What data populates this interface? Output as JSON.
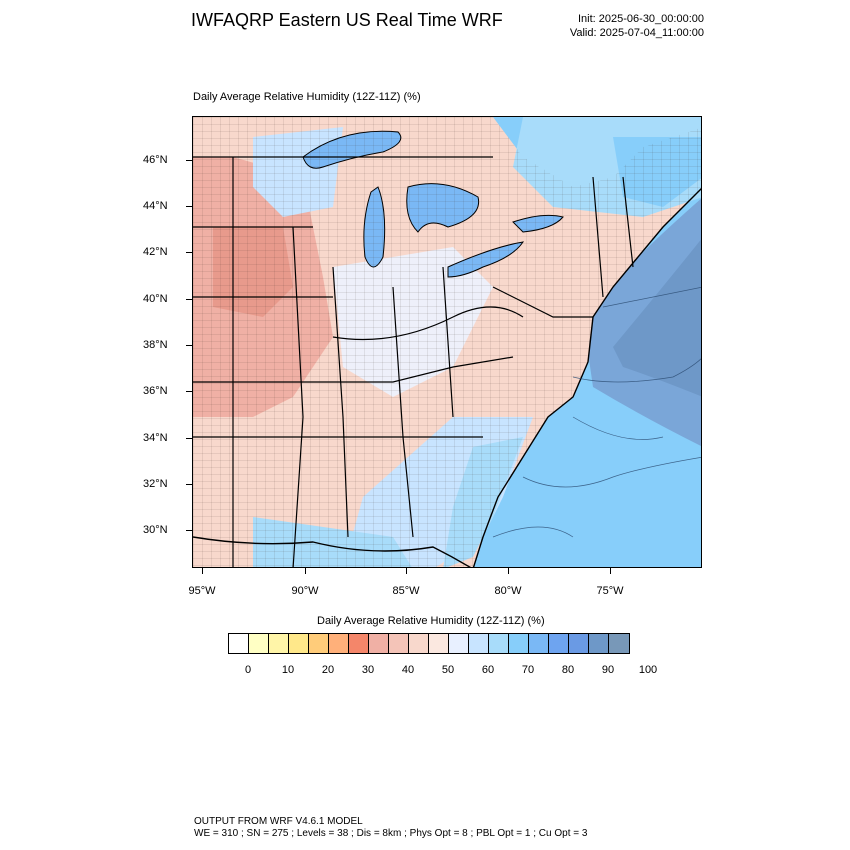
{
  "header": {
    "title": "IWFAQRP Eastern US Real Time WRF",
    "init": "Init: 2025-06-30_00:00:00",
    "valid": "Valid: 2025-07-04_11:00:00"
  },
  "map": {
    "field_label": "Daily Average Relative Humidity (12Z-11Z)   (%)",
    "lat_labels": [
      "46°N",
      "44°N",
      "42°N",
      "40°N",
      "38°N",
      "36°N",
      "34°N",
      "32°N",
      "30°N"
    ],
    "lon_labels": [
      "95°W",
      "90°W",
      "85°W",
      "80°W",
      "75°W"
    ]
  },
  "colorbar": {
    "title": "Daily Average Relative Humidity (12Z-11Z)  (%)",
    "tick_labels": [
      "0",
      "10",
      "20",
      "30",
      "40",
      "50",
      "60",
      "70",
      "80",
      "90",
      "100"
    ],
    "colors": [
      "#ffffff",
      "#ffffc4",
      "#fff5a8",
      "#ffe88a",
      "#ffcc7a",
      "#ffb07a",
      "#f4866a",
      "#f0b0a5",
      "#f4c4b8",
      "#f8d8cc",
      "#fbe8e0",
      "#e8f0ff",
      "#c8e4ff",
      "#a8dcfa",
      "#87cefa",
      "#7ab8f5",
      "#6ea4f0",
      "#6a9ae4",
      "#6e98c8",
      "#7898b8"
    ]
  },
  "footer": {
    "line1": "OUTPUT FROM WRF V4.6.1 MODEL",
    "line2": "WE = 310 ; SN = 275 ; Levels = 38 ; Dis = 8km ; Phys Opt = 8 ; PBL Opt = 1 ; Cu Opt = 3"
  }
}
